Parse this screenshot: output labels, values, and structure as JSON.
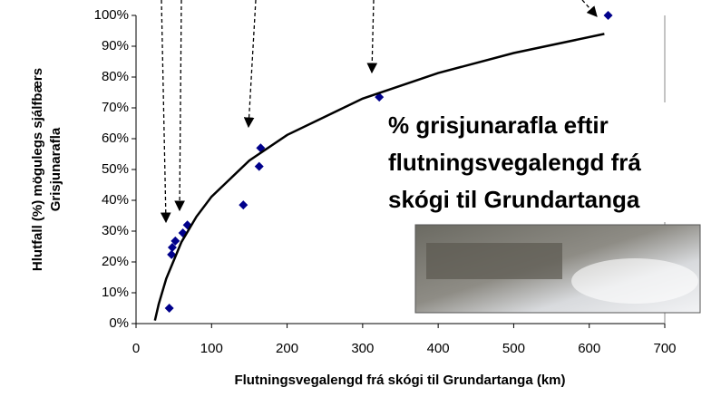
{
  "chart_data": {
    "type": "scatter",
    "xlabel": "Flutningsvegalengd frá skógi til Grundartanga (km)",
    "ylabel": [
      "Hlutfall (%) mögulegs sjálfbærs",
      "Grisjunarafla"
    ],
    "annotation": [
      "% grisjunarafla eftir",
      "flutningsvegalengd frá",
      "skógi til Grundartanga"
    ],
    "xlim": [
      0,
      700
    ],
    "xticks": [
      0,
      100,
      200,
      300,
      400,
      500,
      600,
      700
    ],
    "ylim": [
      0,
      100
    ],
    "yticks": [
      {
        "value": 0,
        "label": "0%"
      },
      {
        "value": 10,
        "label": "10%"
      },
      {
        "value": 20,
        "label": "20%"
      },
      {
        "value": 30,
        "label": "30%"
      },
      {
        "value": 40,
        "label": "40%"
      },
      {
        "value": 50,
        "label": "50%"
      },
      {
        "value": 60,
        "label": "60%"
      },
      {
        "value": 70,
        "label": "70%"
      },
      {
        "value": 80,
        "label": "80%"
      },
      {
        "value": 90,
        "label": "90%"
      },
      {
        "value": 100,
        "label": "100%"
      }
    ],
    "grid": false,
    "series": [
      {
        "type": "scatter",
        "marker": "diamond",
        "color": "#00008b",
        "x": [
          44,
          47,
          48,
          52,
          62,
          68,
          142,
          163,
          165,
          322,
          625
        ],
        "values": [
          5,
          22.4,
          24.7,
          26.8,
          29.4,
          32,
          38.5,
          51,
          57,
          73.5,
          100
        ]
      },
      {
        "type": "line",
        "color": "#000000",
        "x": [
          25,
          30,
          40,
          60,
          80,
          100,
          150,
          200,
          300,
          400,
          500,
          620
        ],
        "values": [
          1,
          6.3,
          14.6,
          26.4,
          34.7,
          41.2,
          52.9,
          61.2,
          73.0,
          81.3,
          87.8,
          94.0
        ]
      }
    ]
  }
}
